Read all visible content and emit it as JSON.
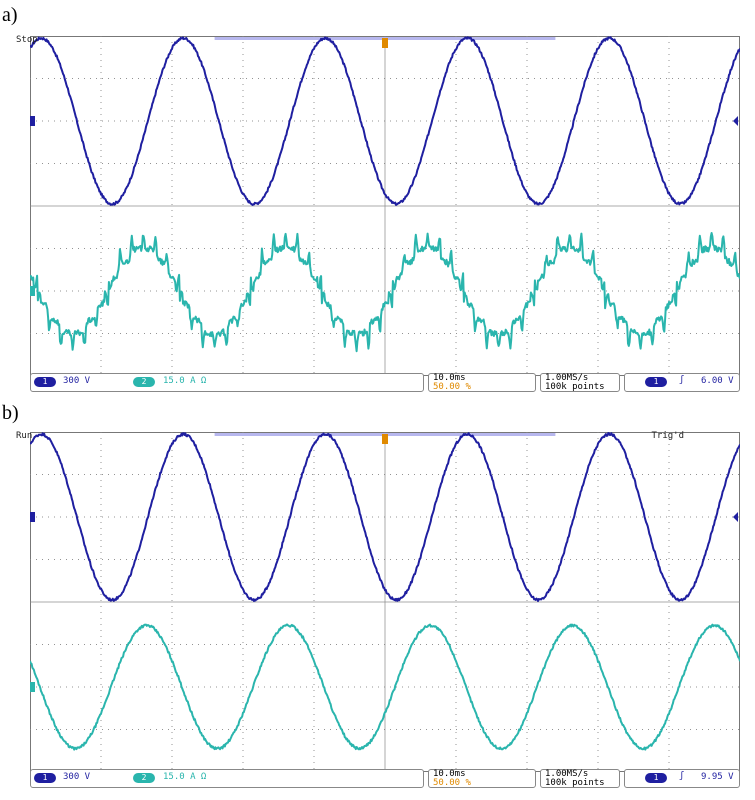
{
  "chart_data": [
    {
      "type": "line",
      "panel_label": "a)",
      "acquisition": "Stop",
      "trigger_status": "",
      "x": {
        "divisions": 10,
        "time_per_div": "10.0ms"
      },
      "y": {
        "divisions": 8
      },
      "grid": true,
      "series": [
        {
          "channel": "1",
          "scale": "300 V",
          "color": "#1f1fa0",
          "waveform": "sine",
          "cycles": 5,
          "amplitude_div": 1.95,
          "offset_div": 2.0,
          "phase": 0.17
        },
        {
          "channel": "2",
          "scale": "15.0 A Ω",
          "color": "#2ab5ad",
          "waveform": "distorted-stepped",
          "cycles": 5,
          "amplitude_div": 1.0,
          "offset_div": -2.0,
          "phase": 0.45
        }
      ],
      "status": {
        "timebase": "10.0ms",
        "position": "50.00 %",
        "sample_rate": "1.00MS/s",
        "record": "100k points",
        "trigger_source": "1",
        "trigger_symbol": "ʃ",
        "trigger_level": "6.00 V"
      }
    },
    {
      "type": "line",
      "panel_label": "b)",
      "acquisition": "Run",
      "trigger_status": "Trig'd",
      "x": {
        "divisions": 10,
        "time_per_div": "10.0ms"
      },
      "y": {
        "divisions": 8
      },
      "grid": true,
      "series": [
        {
          "channel": "1",
          "scale": "300 V",
          "color": "#1f1fa0",
          "waveform": "sine",
          "cycles": 5,
          "amplitude_div": 1.95,
          "offset_div": 2.0,
          "phase": 0.17
        },
        {
          "channel": "2",
          "scale": "15.0 A Ω",
          "color": "#2ab5ad",
          "waveform": "sine",
          "cycles": 5,
          "amplitude_div": 1.45,
          "offset_div": -2.0,
          "phase": 0.43
        }
      ],
      "status": {
        "timebase": "10.0ms",
        "position": "50.00 %",
        "sample_rate": "1.00MS/s",
        "record": "100k points",
        "trigger_source": "1",
        "trigger_symbol": "ʃ",
        "trigger_level": "9.95 V"
      }
    }
  ]
}
